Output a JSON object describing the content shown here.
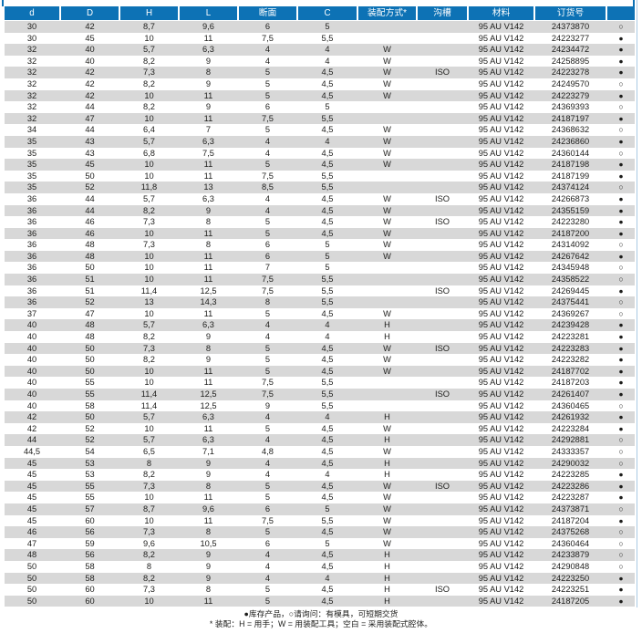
{
  "colors": {
    "header_bg": "#0d72b5",
    "row_alt_bg": "#d8d8d8",
    "text": "#1d1d1b",
    "right_border": "#a9c9e4"
  },
  "table": {
    "columns": [
      "d",
      "D",
      "H",
      "L",
      "断面",
      "C",
      "装配方式*",
      "沟槽",
      "材料",
      "订货号",
      ""
    ],
    "column_keys": [
      "d",
      "D",
      "H",
      "L",
      "cross-section",
      "C",
      "assembly-method",
      "groove",
      "material",
      "order-number",
      "availability"
    ],
    "rows": [
      [
        "30",
        "42",
        "8,7",
        "9,6",
        "6",
        "5",
        "",
        "",
        "95 AU V142",
        "24373870",
        "○"
      ],
      [
        "30",
        "45",
        "10",
        "11",
        "7,5",
        "5,5",
        "",
        "",
        "95 AU V142",
        "24223277",
        "●"
      ],
      [
        "32",
        "40",
        "5,7",
        "6,3",
        "4",
        "4",
        "W",
        "",
        "95 AU V142",
        "24234472",
        "●"
      ],
      [
        "32",
        "40",
        "8,2",
        "9",
        "4",
        "4",
        "W",
        "",
        "95 AU V142",
        "24258895",
        "●"
      ],
      [
        "32",
        "42",
        "7,3",
        "8",
        "5",
        "4,5",
        "W",
        "ISO",
        "95 AU V142",
        "24223278",
        "●"
      ],
      [
        "32",
        "42",
        "8,2",
        "9",
        "5",
        "4,5",
        "W",
        "",
        "95 AU V142",
        "24249570",
        "○"
      ],
      [
        "32",
        "42",
        "10",
        "11",
        "5",
        "4,5",
        "W",
        "",
        "95 AU V142",
        "24223279",
        "●"
      ],
      [
        "32",
        "44",
        "8,2",
        "9",
        "6",
        "5",
        "",
        "",
        "95 AU V142",
        "24369393",
        "○"
      ],
      [
        "32",
        "47",
        "10",
        "11",
        "7,5",
        "5,5",
        "",
        "",
        "95 AU V142",
        "24187197",
        "●"
      ],
      [
        "34",
        "44",
        "6,4",
        "7",
        "5",
        "4,5",
        "W",
        "",
        "95 AU V142",
        "24368632",
        "○"
      ],
      [
        "35",
        "43",
        "5,7",
        "6,3",
        "4",
        "4",
        "W",
        "",
        "95 AU V142",
        "24236860",
        "●"
      ],
      [
        "35",
        "43",
        "6,8",
        "7,5",
        "4",
        "4,5",
        "W",
        "",
        "95 AU V142",
        "24360144",
        "○"
      ],
      [
        "35",
        "45",
        "10",
        "11",
        "5",
        "4,5",
        "W",
        "",
        "95 AU V142",
        "24187198",
        "●"
      ],
      [
        "35",
        "50",
        "10",
        "11",
        "7,5",
        "5,5",
        "",
        "",
        "95 AU V142",
        "24187199",
        "●"
      ],
      [
        "35",
        "52",
        "11,8",
        "13",
        "8,5",
        "5,5",
        "",
        "",
        "95 AU V142",
        "24374124",
        "○"
      ],
      [
        "36",
        "44",
        "5,7",
        "6,3",
        "4",
        "4,5",
        "W",
        "ISO",
        "95 AU V142",
        "24266873",
        "●"
      ],
      [
        "36",
        "44",
        "8,2",
        "9",
        "4",
        "4,5",
        "W",
        "",
        "95 AU V142",
        "24355159",
        "●"
      ],
      [
        "36",
        "46",
        "7,3",
        "8",
        "5",
        "4,5",
        "W",
        "ISO",
        "95 AU V142",
        "24223280",
        "●"
      ],
      [
        "36",
        "46",
        "10",
        "11",
        "5",
        "4,5",
        "W",
        "",
        "95 AU V142",
        "24187200",
        "●"
      ],
      [
        "36",
        "48",
        "7,3",
        "8",
        "6",
        "5",
        "W",
        "",
        "95 AU V142",
        "24314092",
        "○"
      ],
      [
        "36",
        "48",
        "10",
        "11",
        "6",
        "5",
        "W",
        "",
        "95 AU V142",
        "24267642",
        "●"
      ],
      [
        "36",
        "50",
        "10",
        "11",
        "7",
        "5",
        "",
        "",
        "95 AU V142",
        "24345948",
        "○"
      ],
      [
        "36",
        "51",
        "10",
        "11",
        "7,5",
        "5,5",
        "",
        "",
        "95 AU V142",
        "24358522",
        "○"
      ],
      [
        "36",
        "51",
        "11,4",
        "12,5",
        "7,5",
        "5,5",
        "",
        "ISO",
        "95 AU V142",
        "24269445",
        "●"
      ],
      [
        "36",
        "52",
        "13",
        "14,3",
        "8",
        "5,5",
        "",
        "",
        "95 AU V142",
        "24375441",
        "○"
      ],
      [
        "37",
        "47",
        "10",
        "11",
        "5",
        "4,5",
        "W",
        "",
        "95 AU V142",
        "24369267",
        "○"
      ],
      [
        "40",
        "48",
        "5,7",
        "6,3",
        "4",
        "4",
        "H",
        "",
        "95 AU V142",
        "24239428",
        "●"
      ],
      [
        "40",
        "48",
        "8,2",
        "9",
        "4",
        "4",
        "H",
        "",
        "95 AU V142",
        "24223281",
        "●"
      ],
      [
        "40",
        "50",
        "7,3",
        "8",
        "5",
        "4,5",
        "W",
        "ISO",
        "95 AU V142",
        "24223283",
        "●"
      ],
      [
        "40",
        "50",
        "8,2",
        "9",
        "5",
        "4,5",
        "W",
        "",
        "95 AU V142",
        "24223282",
        "●"
      ],
      [
        "40",
        "50",
        "10",
        "11",
        "5",
        "4,5",
        "W",
        "",
        "95 AU V142",
        "24187702",
        "●"
      ],
      [
        "40",
        "55",
        "10",
        "11",
        "7,5",
        "5,5",
        "",
        "",
        "95 AU V142",
        "24187203",
        "●"
      ],
      [
        "40",
        "55",
        "11,4",
        "12,5",
        "7,5",
        "5,5",
        "",
        "ISO",
        "95 AU V142",
        "24261407",
        "●"
      ],
      [
        "40",
        "58",
        "11,4",
        "12,5",
        "9",
        "5,5",
        "",
        "",
        "95 AU V142",
        "24360465",
        "○"
      ],
      [
        "42",
        "50",
        "5,7",
        "6,3",
        "4",
        "4",
        "H",
        "",
        "95 AU V142",
        "24261932",
        "●"
      ],
      [
        "42",
        "52",
        "10",
        "11",
        "5",
        "4,5",
        "W",
        "",
        "95 AU V142",
        "24223284",
        "●"
      ],
      [
        "44",
        "52",
        "5,7",
        "6,3",
        "4",
        "4,5",
        "H",
        "",
        "95 AU V142",
        "24292881",
        "○"
      ],
      [
        "44,5",
        "54",
        "6,5",
        "7,1",
        "4,8",
        "4,5",
        "W",
        "",
        "95 AU V142",
        "24333357",
        "○"
      ],
      [
        "45",
        "53",
        "8",
        "9",
        "4",
        "4,5",
        "H",
        "",
        "95 AU V142",
        "24290032",
        "○"
      ],
      [
        "45",
        "53",
        "8,2",
        "9",
        "4",
        "4",
        "H",
        "",
        "95 AU V142",
        "24223285",
        "●"
      ],
      [
        "45",
        "55",
        "7,3",
        "8",
        "5",
        "4,5",
        "W",
        "ISO",
        "95 AU V142",
        "24223286",
        "●"
      ],
      [
        "45",
        "55",
        "10",
        "11",
        "5",
        "4,5",
        "W",
        "",
        "95 AU V142",
        "24223287",
        "●"
      ],
      [
        "45",
        "57",
        "8,7",
        "9,6",
        "6",
        "5",
        "W",
        "",
        "95 AU V142",
        "24373871",
        "○"
      ],
      [
        "45",
        "60",
        "10",
        "11",
        "7,5",
        "5,5",
        "W",
        "",
        "95 AU V142",
        "24187204",
        "●"
      ],
      [
        "46",
        "56",
        "7,3",
        "8",
        "5",
        "4,5",
        "W",
        "",
        "95 AU V142",
        "24375268",
        "○"
      ],
      [
        "47",
        "59",
        "9,6",
        "10,5",
        "6",
        "5",
        "W",
        "",
        "95 AU V142",
        "24360464",
        "○"
      ],
      [
        "48",
        "56",
        "8,2",
        "9",
        "4",
        "4,5",
        "H",
        "",
        "95 AU V142",
        "24233879",
        "○"
      ],
      [
        "50",
        "58",
        "8",
        "9",
        "4",
        "4,5",
        "H",
        "",
        "95 AU V142",
        "24290848",
        "○"
      ],
      [
        "50",
        "58",
        "8,2",
        "9",
        "4",
        "4",
        "H",
        "",
        "95 AU V142",
        "24223250",
        "●"
      ],
      [
        "50",
        "60",
        "7,3",
        "8",
        "5",
        "4,5",
        "H",
        "ISO",
        "95 AU V142",
        "24223251",
        "●"
      ],
      [
        "50",
        "60",
        "10",
        "11",
        "5",
        "4,5",
        "H",
        "",
        "95 AU V142",
        "24187205",
        "●"
      ]
    ]
  },
  "footer": {
    "legend": "●库存产品，○请询问：有模具，可短期交货",
    "note": "* 装配：H = 用手；W = 用装配工具；空白 = 采用装配式腔体。"
  }
}
